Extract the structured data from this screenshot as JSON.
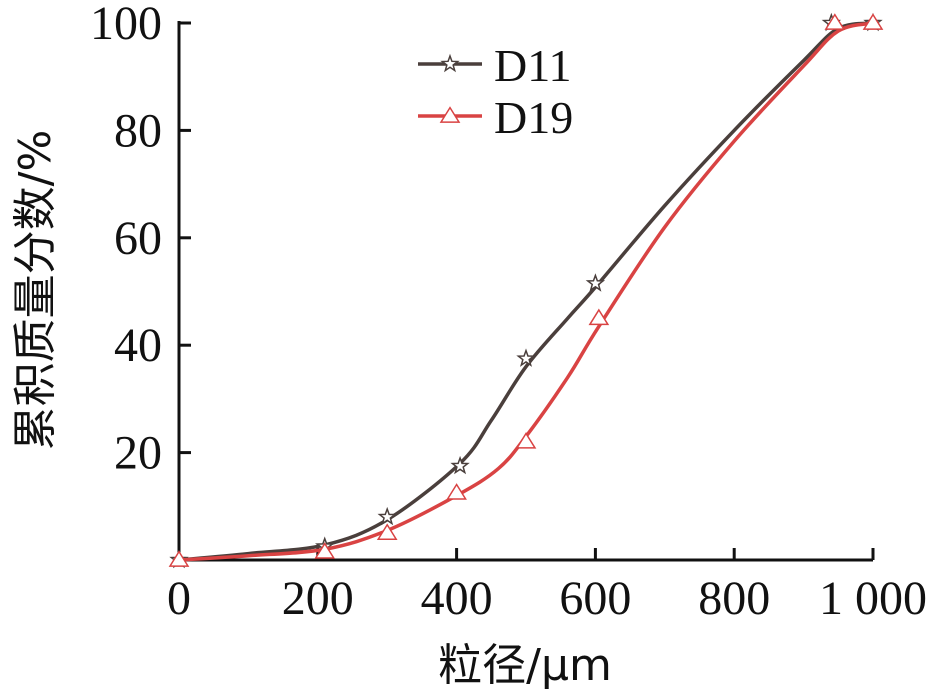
{
  "chart_data": {
    "type": "line",
    "title": "",
    "xlabel": "粒径/μm",
    "ylabel": "累积质量分数/%",
    "xlim": [
      0,
      1000
    ],
    "ylim": [
      0,
      100
    ],
    "x_ticks": [
      "0",
      "200",
      "400",
      "600",
      "800",
      "1 000"
    ],
    "y_ticks": [
      "20",
      "40",
      "60",
      "80",
      "100"
    ],
    "x_tick_values": [
      0,
      200,
      400,
      600,
      800,
      1000
    ],
    "y_tick_values": [
      20,
      40,
      60,
      80,
      100
    ],
    "grid": false,
    "legend_position": "top-center",
    "series": [
      {
        "name": "D11",
        "color": "#4a3f3c",
        "marker": "star",
        "points": [
          [
            0,
            0
          ],
          [
            210,
            2.5
          ],
          [
            300,
            8
          ],
          [
            405,
            17.5
          ],
          [
            500,
            37.5
          ],
          [
            600,
            51.5
          ],
          [
            940,
            100
          ],
          [
            1000,
            100
          ]
        ]
      },
      {
        "name": "D19",
        "color": "#d94343",
        "marker": "triangle",
        "points": [
          [
            0,
            0
          ],
          [
            210,
            1.5
          ],
          [
            300,
            5
          ],
          [
            400,
            12.5
          ],
          [
            500,
            22
          ],
          [
            605,
            45
          ],
          [
            945,
            100
          ],
          [
            1000,
            100
          ]
        ]
      }
    ],
    "smooth_curve": [
      [
        [
          0,
          0
        ],
        [
          100,
          1.2
        ],
        [
          210,
          2.8
        ],
        [
          300,
          7.5
        ],
        [
          405,
          18
        ],
        [
          450,
          26
        ],
        [
          500,
          36
        ],
        [
          560,
          45
        ],
        [
          600,
          50.8
        ],
        [
          700,
          66
        ],
        [
          800,
          80
        ],
        [
          900,
          93
        ],
        [
          950,
          99
        ],
        [
          1000,
          100
        ]
      ],
      [
        [
          0,
          0
        ],
        [
          100,
          0.8
        ],
        [
          210,
          2.0
        ],
        [
          300,
          5.5
        ],
        [
          400,
          12
        ],
        [
          460,
          17
        ],
        [
          500,
          23
        ],
        [
          560,
          34
        ],
        [
          605,
          43.5
        ],
        [
          700,
          62
        ],
        [
          800,
          78
        ],
        [
          900,
          92
        ],
        [
          950,
          98.5
        ],
        [
          1000,
          100
        ]
      ]
    ]
  }
}
